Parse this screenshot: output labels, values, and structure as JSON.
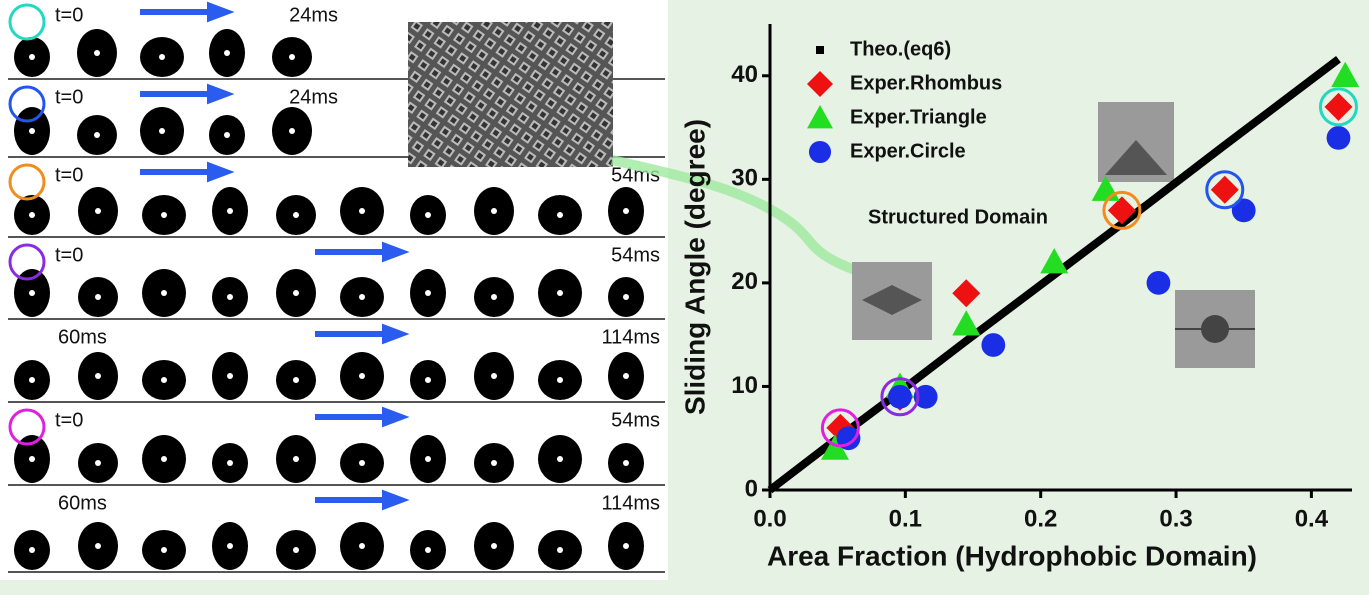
{
  "panel": {
    "rows": [
      {
        "start": "t=0",
        "end": "24ms"
      },
      {
        "start": "t=0",
        "end": "24ms"
      },
      {
        "start": "t=0",
        "end": "54ms"
      },
      {
        "start": "t=0",
        "end": "54ms"
      },
      {
        "start": "60ms",
        "end": "114ms"
      },
      {
        "start": "t=0",
        "end": "54ms"
      },
      {
        "start": "60ms",
        "end": "114ms"
      }
    ]
  },
  "chart_data": {
    "type": "scatter",
    "y_label": "Sliding Angle (degree)",
    "x_label": "Area Fraction (Hydrophobic Domain)",
    "annotation": "Structured Domain",
    "xlim": [
      0,
      0.43
    ],
    "ylim": [
      0,
      45
    ],
    "xticks": [
      {
        "value": 0,
        "label": "0.0"
      },
      0.1,
      0.2,
      0.3,
      0.4
    ],
    "yticks": [
      0,
      10,
      20,
      30,
      40
    ],
    "series": [
      {
        "name": "Theo.(eq6)",
        "color": "#000000",
        "marker": "line",
        "x": [
          0,
          0.05,
          0.095,
          0.145,
          0.26,
          0.335,
          0.42
        ],
        "y": [
          0,
          5,
          9.4,
          14.4,
          25.7,
          33.2,
          41.6
        ]
      },
      {
        "name": "Exper.Rhombus",
        "color": "#ee1111",
        "marker": "diamond",
        "x": [
          0.052,
          0.096,
          0.145,
          0.26,
          0.336,
          0.42
        ],
        "y": [
          6,
          9,
          19,
          27,
          29,
          37
        ]
      },
      {
        "name": "Exper.Triangle",
        "color": "#22dd22",
        "marker": "triangle",
        "x": [
          0.048,
          0.096,
          0.145,
          0.21,
          0.248,
          0.425
        ],
        "y": [
          4,
          10,
          16,
          22,
          29,
          40
        ]
      },
      {
        "name": "Exper.Circle",
        "color": "#1a2ee6",
        "marker": "circle",
        "x": [
          0.058,
          0.096,
          0.115,
          0.165,
          0.287,
          0.35,
          0.42
        ],
        "y": [
          5,
          9,
          9,
          14,
          20,
          27,
          34
        ]
      }
    ],
    "highlights": {
      "x": [
        0.052,
        0.096,
        0.26,
        0.336,
        0.42
      ],
      "y": [
        6,
        9,
        27,
        29,
        37
      ],
      "colors": [
        "#e020e0",
        "#8a2be2",
        "#f28c1e",
        "#2255ee",
        "#22d8c0"
      ]
    }
  }
}
